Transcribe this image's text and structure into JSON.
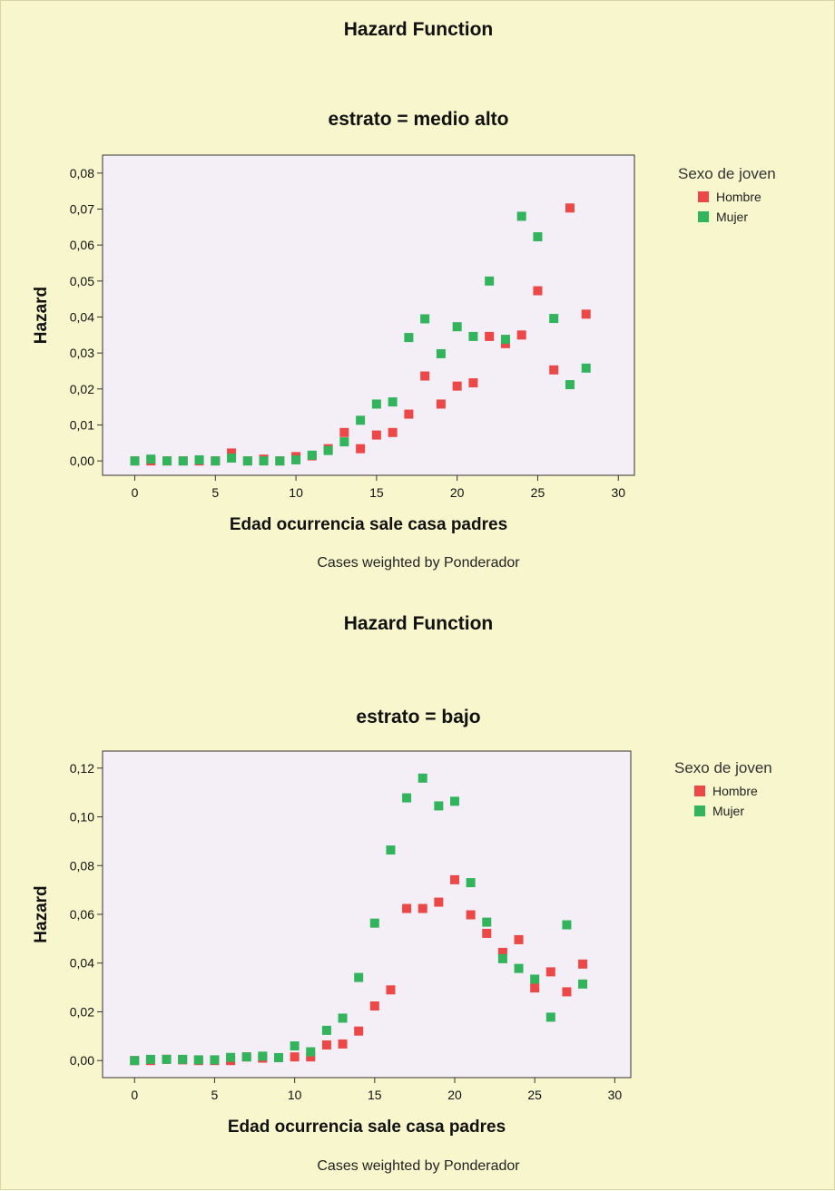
{
  "colors": {
    "Hombre": "#ec4848",
    "Mujer": "#32b45c",
    "plot_bg": "#f4eff6"
  },
  "chart_data": [
    {
      "type": "scatter",
      "title": "Hazard Function",
      "subtitle": "estrato = medio alto",
      "xlabel": "Edad ocurrencia sale casa padres",
      "ylabel": "Hazard",
      "xlim": [
        -2,
        31
      ],
      "ylim": [
        -0.004,
        0.085
      ],
      "xticks": [
        0,
        5,
        10,
        15,
        20,
        25,
        30
      ],
      "xtick_labels": [
        "0",
        "5",
        "10",
        "15",
        "20",
        "25",
        "30"
      ],
      "yticks": [
        0,
        0.01,
        0.02,
        0.03,
        0.04,
        0.05,
        0.06,
        0.07,
        0.08
      ],
      "ytick_labels": [
        "0,00",
        "0,01",
        "0,02",
        "0,03",
        "0,04",
        "0,05",
        "0,06",
        "0,07",
        "0,08"
      ],
      "legend_title": "Sexo de joven",
      "legend_position": "right",
      "footnote": "Cases weighted by Ponderador",
      "series": [
        {
          "name": "Hombre",
          "x": [
            0,
            1,
            2,
            3,
            4,
            5,
            6,
            7,
            8,
            9,
            10,
            11,
            12,
            13,
            14,
            15,
            16,
            17,
            18,
            19,
            20,
            21,
            22,
            23,
            24,
            25,
            26,
            27,
            28
          ],
          "y": [
            0.0,
            0.0,
            0.0,
            0.0,
            0.0,
            0.0,
            0.0022,
            0.0,
            0.0005,
            0.0,
            0.0012,
            0.0014,
            0.0034,
            0.0079,
            0.0034,
            0.0072,
            0.0079,
            0.013,
            0.0236,
            0.0158,
            0.0208,
            0.0217,
            0.0346,
            0.0326,
            0.035,
            0.0473,
            0.0253,
            0.0703,
            0.0408
          ]
        },
        {
          "name": "Mujer",
          "x": [
            0,
            1,
            2,
            3,
            4,
            5,
            6,
            7,
            8,
            9,
            10,
            11,
            12,
            13,
            14,
            15,
            16,
            17,
            18,
            19,
            20,
            21,
            22,
            23,
            24,
            25,
            26,
            27,
            28
          ],
          "y": [
            0.0,
            0.0005,
            0.0,
            0.0,
            0.0003,
            0.0,
            0.0008,
            0.0,
            0.0,
            0.0,
            0.0003,
            0.0016,
            0.0029,
            0.0053,
            0.0113,
            0.0158,
            0.0164,
            0.0343,
            0.0395,
            0.0298,
            0.0373,
            0.0346,
            0.05,
            0.0338,
            0.068,
            0.0623,
            0.0396,
            0.0212,
            0.0258
          ]
        }
      ]
    },
    {
      "type": "scatter",
      "title": "Hazard Function",
      "subtitle": "estrato = bajo",
      "xlabel": "Edad ocurrencia sale casa padres",
      "ylabel": "Hazard",
      "xlim": [
        -2,
        31
      ],
      "ylim": [
        -0.007,
        0.127
      ],
      "xticks": [
        0,
        5,
        10,
        15,
        20,
        25,
        30
      ],
      "xtick_labels": [
        "0",
        "5",
        "10",
        "15",
        "20",
        "25",
        "30"
      ],
      "yticks": [
        0,
        0.02,
        0.04,
        0.06,
        0.08,
        0.1,
        0.12
      ],
      "ytick_labels": [
        "0,00",
        "0,02",
        "0,04",
        "0,06",
        "0,08",
        "0,10",
        "0,12"
      ],
      "legend_title": "Sexo de joven",
      "legend_position": "right",
      "footnote": "Cases weighted by Ponderador",
      "series": [
        {
          "name": "Hombre",
          "x": [
            0,
            1,
            2,
            3,
            4,
            5,
            6,
            7,
            8,
            9,
            10,
            11,
            12,
            13,
            14,
            15,
            16,
            17,
            18,
            19,
            20,
            21,
            22,
            23,
            24,
            25,
            26,
            27,
            28
          ],
          "y": [
            0.0,
            0.0,
            0.0005,
            0.0003,
            0.0,
            0.0,
            0.0,
            0.0015,
            0.001,
            0.0012,
            0.0015,
            0.0015,
            0.0064,
            0.0068,
            0.0121,
            0.0224,
            0.029,
            0.0624,
            0.0624,
            0.065,
            0.0742,
            0.0598,
            0.0522,
            0.0444,
            0.0496,
            0.0298,
            0.0364,
            0.0282,
            0.0396
          ]
        },
        {
          "name": "Mujer",
          "x": [
            0,
            1,
            2,
            3,
            4,
            5,
            6,
            7,
            8,
            9,
            10,
            11,
            12,
            13,
            14,
            15,
            16,
            17,
            18,
            19,
            20,
            21,
            22,
            23,
            24,
            25,
            26,
            27,
            28
          ],
          "y": [
            0.0,
            0.0005,
            0.0005,
            0.0005,
            0.0003,
            0.0003,
            0.0013,
            0.0015,
            0.0018,
            0.0012,
            0.006,
            0.0036,
            0.0124,
            0.0174,
            0.0341,
            0.0564,
            0.0864,
            0.1078,
            0.1159,
            0.1045,
            0.1064,
            0.073,
            0.0568,
            0.0418,
            0.0378,
            0.0334,
            0.0178,
            0.0557,
            0.0314
          ]
        }
      ]
    }
  ]
}
